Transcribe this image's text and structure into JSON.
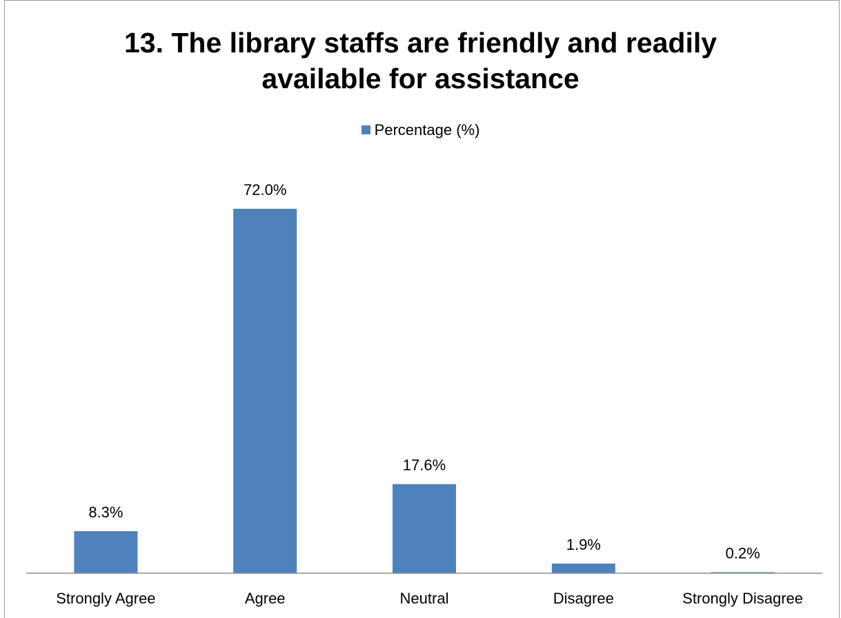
{
  "chart_data": {
    "type": "bar",
    "title": "13. The library staffs are friendly and readily available for assistance",
    "title_lines": [
      "13. The library staffs are friendly and readily",
      "available for assistance"
    ],
    "categories": [
      "Strongly Agree",
      "Agree",
      "Neutral",
      "Disagree",
      "Strongly Disagree"
    ],
    "series": [
      {
        "name": "Percentage (%)",
        "values": [
          8.3,
          72.0,
          17.6,
          1.9,
          0.2
        ],
        "labels": [
          "8.3%",
          "72.0%",
          "17.6%",
          "1.9%",
          "0.2%"
        ],
        "color": "#4f81bd"
      }
    ],
    "xlabel": "",
    "ylabel": "",
    "ylim": [
      0,
      72
    ],
    "grid": false,
    "legend": "top"
  }
}
